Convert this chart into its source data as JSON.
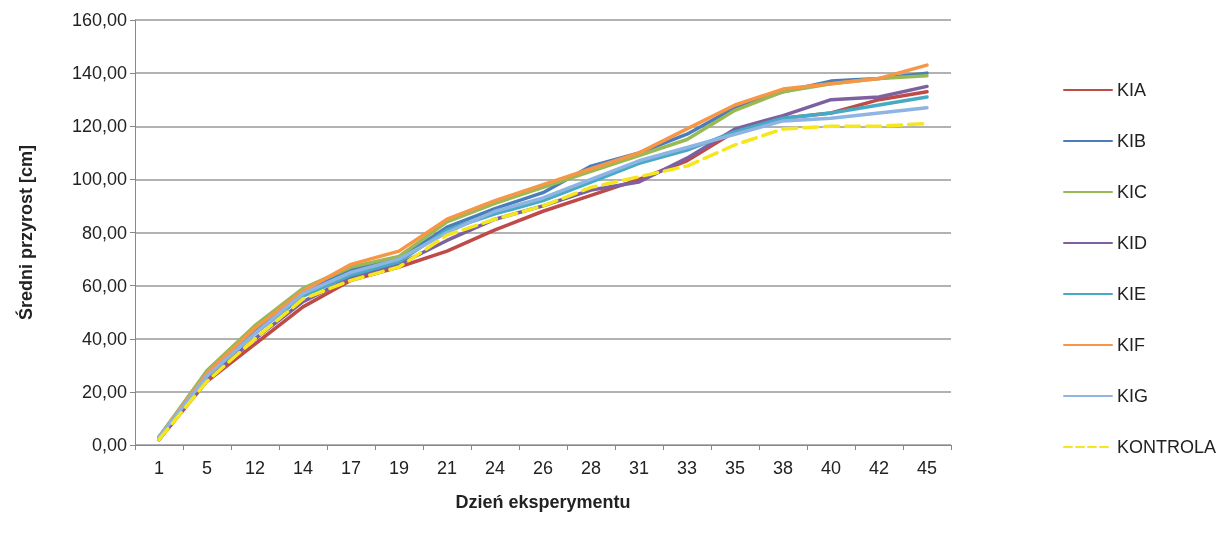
{
  "chart_data": {
    "type": "line",
    "xlabel": "Dzień eksperymentu",
    "ylabel": "Średni przyrost [cm]",
    "categories": [
      "1",
      "5",
      "12",
      "14",
      "17",
      "19",
      "21",
      "24",
      "26",
      "28",
      "31",
      "33",
      "35",
      "38",
      "40",
      "42",
      "45"
    ],
    "ylim": [
      0,
      160
    ],
    "yticks": [
      {
        "value": 0,
        "label": "0,00"
      },
      {
        "value": 20,
        "label": "20,00"
      },
      {
        "value": 40,
        "label": "40,00"
      },
      {
        "value": 60,
        "label": "60,00"
      },
      {
        "value": 80,
        "label": "80,00"
      },
      {
        "value": 100,
        "label": "100,00"
      },
      {
        "value": 120,
        "label": "120,00"
      },
      {
        "value": 140,
        "label": "140,00"
      },
      {
        "value": 160,
        "label": "160,00"
      }
    ],
    "grid": "y",
    "legend": "right",
    "marker": "none",
    "line_style": "solid",
    "series": [
      {
        "name": "KIA",
        "color": "#be4b48",
        "values": [
          2,
          24,
          38,
          52,
          62,
          67,
          73,
          81,
          88,
          94,
          100,
          107,
          118,
          123,
          125,
          130,
          133
        ]
      },
      {
        "name": "KIB",
        "color": "#4a7ebb",
        "values": [
          3,
          27,
          43,
          58,
          66,
          70,
          82,
          89,
          95,
          105,
          110,
          117,
          127,
          133,
          137,
          138,
          140
        ]
      },
      {
        "name": "KIC",
        "color": "#98b954",
        "values": [
          3,
          28,
          45,
          59,
          67,
          71,
          84,
          91,
          97,
          103,
          109,
          115,
          126,
          133,
          136,
          138,
          139
        ]
      },
      {
        "name": "KID",
        "color": "#7d60a0",
        "values": [
          2,
          25,
          40,
          54,
          63,
          68,
          77,
          85,
          90,
          96,
          99,
          108,
          119,
          124,
          130,
          131,
          135
        ]
      },
      {
        "name": "KIE",
        "color": "#46aac5",
        "values": [
          3,
          26,
          42,
          56,
          64,
          69,
          81,
          87,
          92,
          99,
          106,
          111,
          118,
          123,
          125,
          128,
          131
        ]
      },
      {
        "name": "KIF",
        "color": "#f79646",
        "values": [
          3,
          27,
          44,
          58,
          68,
          73,
          85,
          92,
          98,
          104,
          110,
          119,
          128,
          134,
          136,
          138,
          143
        ]
      },
      {
        "name": "KIG",
        "color": "#8eb4e3",
        "values": [
          3,
          26,
          42,
          57,
          65,
          70,
          80,
          88,
          93,
          100,
          107,
          112,
          117,
          122,
          123,
          125,
          127
        ]
      },
      {
        "name": "KONTROLA",
        "color": "#f5e71b",
        "line_style": "dashed",
        "values": [
          2,
          24,
          40,
          55,
          62,
          67,
          79,
          85,
          90,
          97,
          101,
          105,
          113,
          119,
          120,
          120,
          121
        ]
      }
    ]
  }
}
